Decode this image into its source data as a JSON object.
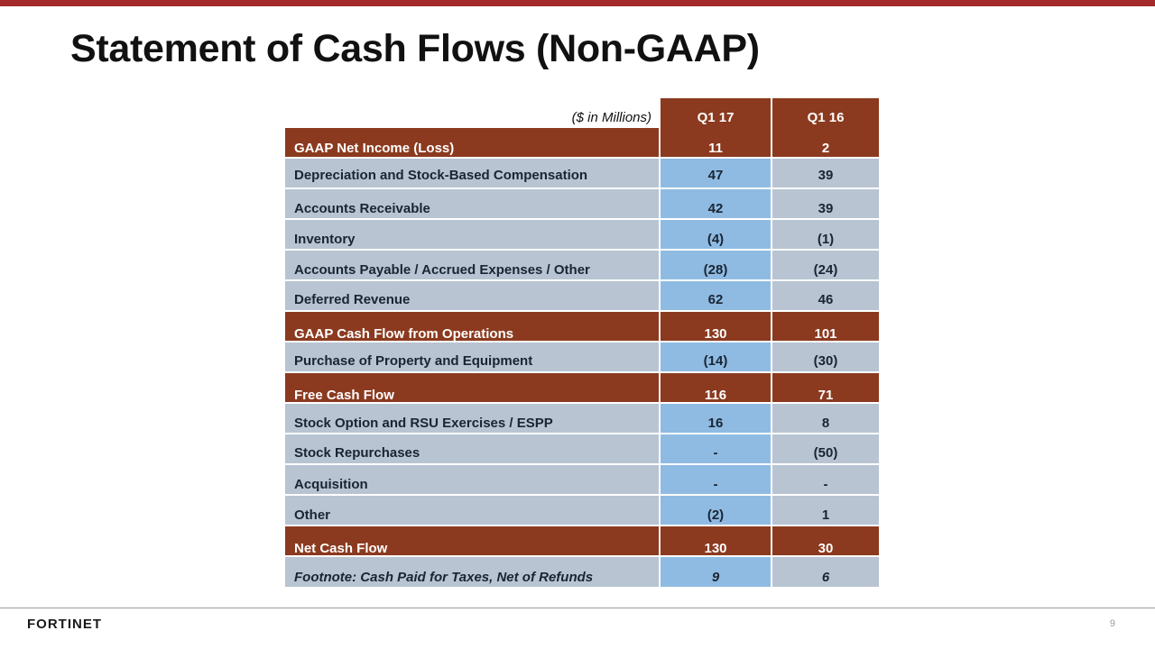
{
  "slide": {
    "title": "Statement of Cash Flows (Non-GAAP)",
    "units": "($ in Millions)",
    "page_number": "9",
    "logo_text": "FORTINET",
    "colors": {
      "accent": "#8b3a1f",
      "top_bar": "#a32a2a",
      "row_bg": "#b8c4d2",
      "highlight_col": "#8fbbe3"
    }
  },
  "table": {
    "columns": [
      "Q1 17",
      "Q1 16"
    ],
    "rows": [
      {
        "label": "GAAP Net Income (Loss)",
        "q1_17": "11",
        "q1_16": "2",
        "style": "total"
      },
      {
        "label": "Depreciation and Stock-Based Compensation",
        "q1_17": "47",
        "q1_16": "39",
        "style": "normal"
      },
      {
        "label": "Accounts Receivable",
        "q1_17": "42",
        "q1_16": "39",
        "style": "normal"
      },
      {
        "label": "Inventory",
        "q1_17": "(4)",
        "q1_16": "(1)",
        "style": "normal"
      },
      {
        "label": "Accounts Payable / Accrued Expenses / Other",
        "q1_17": "(28)",
        "q1_16": "(24)",
        "style": "normal"
      },
      {
        "label": "Deferred Revenue",
        "q1_17": "62",
        "q1_16": "46",
        "style": "normal"
      },
      {
        "label": "GAAP Cash Flow from Operations",
        "q1_17": "130",
        "q1_16": "101",
        "style": "total"
      },
      {
        "label": "Purchase of Property and Equipment",
        "q1_17": "(14)",
        "q1_16": "(30)",
        "style": "normal"
      },
      {
        "label": "Free Cash Flow",
        "q1_17": "116",
        "q1_16": "71",
        "style": "total"
      },
      {
        "label": "Stock Option and RSU Exercises / ESPP",
        "q1_17": "16",
        "q1_16": "8",
        "style": "normal"
      },
      {
        "label": "Stock Repurchases",
        "q1_17": "-",
        "q1_16": "(50)",
        "style": "normal"
      },
      {
        "label": "Acquisition",
        "q1_17": "-",
        "q1_16": "-",
        "style": "normal"
      },
      {
        "label": "Other",
        "q1_17": "(2)",
        "q1_16": "1",
        "style": "normal"
      },
      {
        "label": "Net  Cash Flow",
        "q1_17": "130",
        "q1_16": "30",
        "style": "total"
      },
      {
        "label": "Footnote: Cash Paid for Taxes, Net of Refunds",
        "q1_17": "9",
        "q1_16": "6",
        "style": "foot"
      }
    ]
  }
}
